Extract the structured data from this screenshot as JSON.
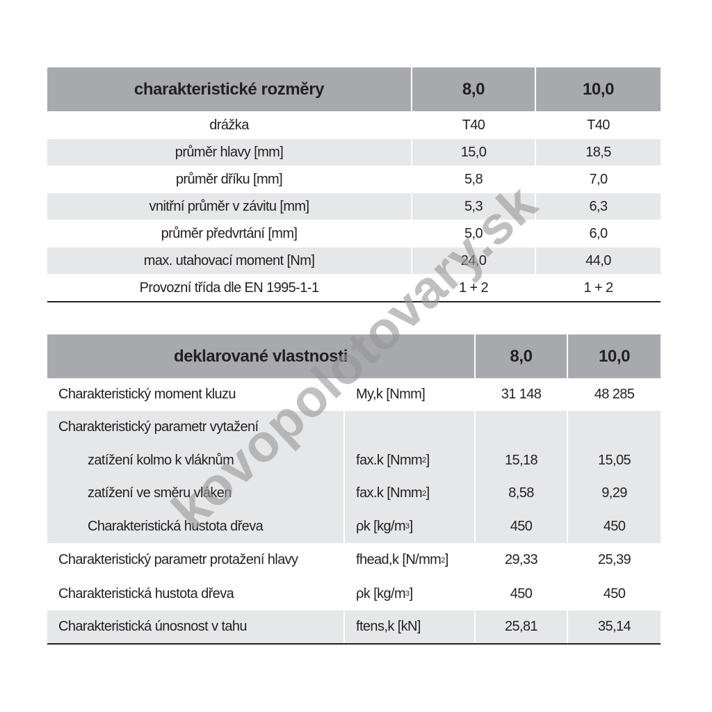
{
  "table1": {
    "header": [
      "charakteristické rozměry",
      "8,0",
      "10,0"
    ],
    "rows": [
      [
        "drážka",
        "T40",
        "T40"
      ],
      [
        "průměr hlavy [mm]",
        "15,0",
        "18,5"
      ],
      [
        "průměr dříku [mm]",
        "5,8",
        "7,0"
      ],
      [
        "vnitřní průměr v závitu [mm]",
        "5,3",
        "6,3"
      ],
      [
        "průměr předvrtání [mm]",
        "5,0",
        "6,0"
      ],
      [
        "max. utahovací moment [Nm]",
        "24,0",
        "44,0"
      ],
      [
        "Provozní třída dle EN 1995-1-1",
        "1 + 2",
        "1 + 2"
      ]
    ]
  },
  "table2": {
    "header": [
      "deklarované vlastnosti",
      "8,0",
      "10,0"
    ],
    "row1": {
      "label": "Charakteristický moment kluzu",
      "unit": "My,k [Nmm]",
      "v1": "31 148",
      "v2": "48 285"
    },
    "group": {
      "label": "Charakteristický parametr vytažení",
      "sub": [
        {
          "label": "zatížení kolmo k vláknům",
          "unit": "fax.k [Nmm",
          "sup": "2",
          "unit_end": "]",
          "v1": "15,18",
          "v2": "15,05"
        },
        {
          "label": "zatížení ve směru vláken",
          "unit": "fax.k [Nmm",
          "sup": "2",
          "unit_end": "]",
          "v1": "8,58",
          "v2": "9,29"
        },
        {
          "label": "Charakteristická hustota dřeva",
          "unit": "ρk [kg/m",
          "sup": "3",
          "unit_end": "]",
          "v1": "450",
          "v2": "450"
        }
      ]
    },
    "row3": {
      "label": "Charakteristický parametr protažení hlavy",
      "unit": "fhead,k [N/mm",
      "sup": "2",
      "unit_end": "]",
      "v1": "29,33",
      "v2": "25,39"
    },
    "row4": {
      "label": "Charakteristická hustota dřeva",
      "unit": "ρk [kg/m",
      "sup": "3",
      "unit_end": "]",
      "v1": "450",
      "v2": "450"
    },
    "row5": {
      "label": "Charakteristická únosnost v tahu",
      "unit": "ftens,k [kN]",
      "v1": "25,81",
      "v2": "35,14"
    }
  },
  "watermark": "kovopolotovary.sk",
  "colors": {
    "header_bg": "#a7a9ac",
    "stripe_bg": "#e6e7e8",
    "text": "#231f20"
  }
}
